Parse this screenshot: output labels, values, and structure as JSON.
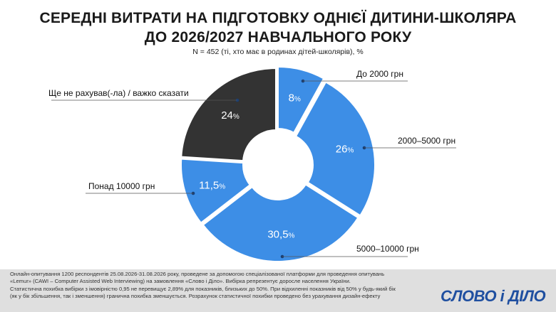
{
  "chart_data": {
    "type": "pie",
    "donut": true,
    "title_line1": "СЕРЕДНІ ВИТРАТИ НА ПІДГОТОВКУ ОДНІЄЇ ДИТИНИ-ШКОЛЯРА",
    "title_line2": "ДО 2026/2027 НАВЧАЛЬНОГО РОКУ",
    "subtitle": "N = 452 (ті, хто має в родинах дітей-школярів), %",
    "slices": [
      {
        "label": "До 2000 грн",
        "value": 8,
        "value_label": "8",
        "color": "#3d8ee6"
      },
      {
        "label": "2000–5000 грн",
        "value": 26,
        "value_label": "26",
        "color": "#3d8ee6"
      },
      {
        "label": "5000–10000 грн",
        "value": 30.5,
        "value_label": "30,5",
        "color": "#3d8ee6"
      },
      {
        "label": "Понад 10000 грн",
        "value": 11.5,
        "value_label": "11,5",
        "color": "#3d8ee6"
      },
      {
        "label": "Ще не рахував(-ла) / важко сказати",
        "value": 24,
        "value_label": "24",
        "color": "#333333"
      }
    ],
    "percent_sign": "%"
  },
  "footer": {
    "lines": [
      "Онлайн-опитування 1200 респондентів 25.08.2026-31.08.2026 року, проведене за допомогою спеціалізованої платформи для проведення опитувань",
      "«Lemur» (CAWI – Computer Assisted Web Interviewing) на замовлення «Слово і Діло». Вибірка репрезентує доросле населення України.",
      "Статистична похибка вибірки з імовірністю 0,95 не перевищує 2,89% для показників, близьких до 50%. При відхиленні показників від 50% у будь-який бік",
      "(як у бік збільшення, так і зменшення) гранична похибка зменшується. Розрахунок статистичної похибки проведено без урахування дизайн-ефекту"
    ],
    "logo_text": "СЛОВО і ДІЛО"
  }
}
